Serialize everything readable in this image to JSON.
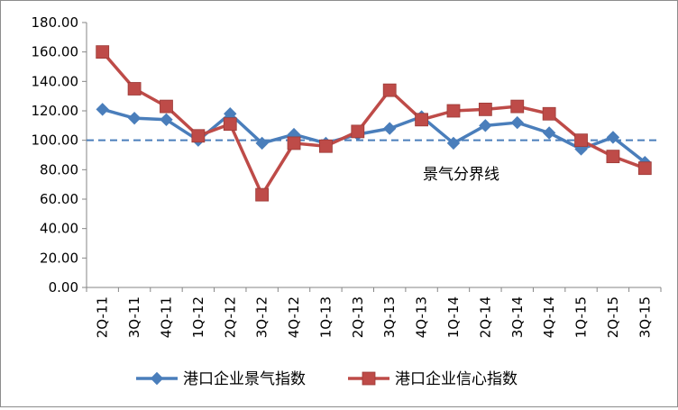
{
  "chart_data": {
    "type": "line",
    "categories": [
      "2Q-11",
      "3Q-11",
      "4Q-11",
      "1Q-12",
      "2Q-12",
      "3Q-12",
      "4Q-12",
      "1Q-13",
      "2Q-13",
      "3Q-13",
      "4Q-13",
      "1Q-14",
      "2Q-14",
      "3Q-14",
      "4Q-14",
      "1Q-15",
      "2Q-15",
      "3Q-15"
    ],
    "ylim": [
      0,
      180
    ],
    "yticks": [
      "0.00",
      "20.00",
      "40.00",
      "60.00",
      "80.00",
      "100.00",
      "120.00",
      "140.00",
      "160.00",
      "180.00"
    ],
    "grid": false,
    "legend_position": "bottom",
    "series": [
      {
        "name": "港口企业景气指数",
        "color": "#4a7ebb",
        "marker": "diamond",
        "values": [
          121,
          115,
          114,
          100,
          118,
          98,
          104,
          98,
          104,
          108,
          116,
          98,
          110,
          112,
          105,
          94,
          102,
          85
        ]
      },
      {
        "name": "港口企业信心指数",
        "color": "#be4b48",
        "marker": "square",
        "values": [
          160,
          135,
          123,
          103,
          111,
          63,
          98,
          96,
          106,
          134,
          114,
          120,
          121,
          123,
          118,
          100,
          89,
          81
        ]
      }
    ],
    "reference_line": {
      "value": 100,
      "label": "景气分界线",
      "color": "#4a7ebb",
      "style": "dashed"
    }
  }
}
